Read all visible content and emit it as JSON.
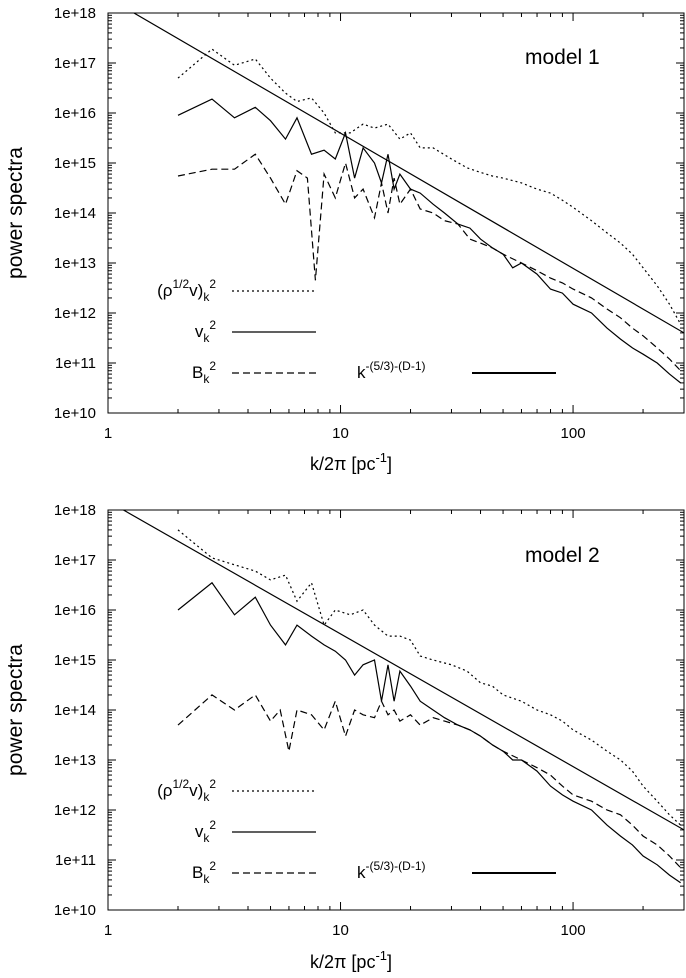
{
  "chart_data": [
    {
      "type": "line",
      "title": "model 1",
      "xlabel": "k/2π [pc⁻¹]",
      "xlabel_main": "k/2π [pc",
      "xlabel_sup": "-1",
      "xlabel_end": "]",
      "ylabel": "power spectra",
      "xscale": "log",
      "yscale": "log",
      "xlim": [
        1,
        300
      ],
      "ylim": [
        10000000000.0,
        1e+18
      ],
      "x_ticks": [
        1,
        10,
        100
      ],
      "x_tick_labels": [
        "1",
        "10",
        "100"
      ],
      "y_ticks": [
        10000000000.0,
        100000000000.0,
        1000000000000.0,
        10000000000000.0,
        100000000000000.0,
        1000000000000000.0,
        1e+16,
        1e+17,
        1e+18
      ],
      "y_tick_labels": [
        "1e+10",
        "1e+11",
        "1e+12",
        "1e+13",
        "1e+14",
        "1e+15",
        "1e+16",
        "1e+17",
        "1e+18"
      ],
      "legend": [
        {
          "label": "(ρ^1/2 v)_k^2",
          "base": "(ρ",
          "sup1": "1/2",
          "mid": "v)",
          "sub": "k",
          "sup2": "2",
          "dash": "dotted"
        },
        {
          "label": "v_k^2",
          "base": "v",
          "sub": "k",
          "sup2": "2",
          "dash": "solid"
        },
        {
          "label": "B_k^2",
          "base": "B",
          "sub": "k",
          "sup2": "2",
          "dash": "dashed"
        },
        {
          "label": "k^-(5/3)-(D-1)",
          "base": "k",
          "sup1": "-(5/3)-(D-1)",
          "dash": "solid-thick"
        }
      ],
      "series": [
        {
          "name": "(ρ^1/2 v)_k^2",
          "style": "dotted",
          "x": [
            2,
            2.8,
            3.5,
            4.3,
            5,
            5.8,
            6.5,
            7.5,
            8.5,
            9.5,
            11,
            12.5,
            14,
            16,
            18,
            20,
            22,
            25,
            30,
            35,
            40,
            45,
            50,
            60,
            70,
            80,
            90,
            100,
            120,
            140,
            160,
            180,
            200,
            230,
            260,
            290
          ],
          "y": [
            5e+16,
            1.9e+17,
            9e+16,
            1.2e+17,
            5e+16,
            2.5e+16,
            1.7e+16,
            2e+16,
            1e+16,
            4000000000000000.0,
            4000000000000000.0,
            6000000000000000.0,
            5000000000000000.0,
            6000000000000000.0,
            3000000000000000.0,
            4000000000000000.0,
            2000000000000000.0,
            2000000000000000.0,
            1200000000000000.0,
            800000000000000.0,
            650000000000000.0,
            550000000000000.0,
            500000000000000.0,
            400000000000000.0,
            300000000000000.0,
            250000000000000.0,
            180000000000000.0,
            130000000000000.0,
            70000000000000.0,
            40000000000000.0,
            25000000000000.0,
            15000000000000.0,
            8000000000000.0,
            3500000000000.0,
            1500000000000.0,
            600000000000.0
          ]
        },
        {
          "name": "v_k^2",
          "style": "solid",
          "x": [
            2,
            2.8,
            3.5,
            4.3,
            5,
            5.8,
            6.5,
            7.5,
            8.5,
            9.5,
            10.5,
            11.5,
            12.5,
            14,
            15,
            16,
            17,
            18,
            20,
            22,
            25,
            28,
            32,
            36,
            40,
            45,
            50,
            55,
            60,
            70,
            80,
            90,
            100,
            120,
            140,
            160,
            180,
            200,
            230,
            260,
            290
          ],
          "y": [
            9000000000000000.0,
            1.9e+16,
            8000000000000000.0,
            1.3e+16,
            7000000000000000.0,
            3000000000000000.0,
            8000000000000000.0,
            1500000000000000.0,
            1800000000000000.0,
            1200000000000000.0,
            4000000000000000.0,
            500000000000000.0,
            2000000000000000.0,
            1000000000000000.0,
            400000000000000.0,
            1500000000000000.0,
            300000000000000.0,
            600000000000000.0,
            300000000000000.0,
            250000000000000.0,
            150000000000000.0,
            100000000000000.0,
            60000000000000.0,
            50000000000000.0,
            30000000000000.0,
            20000000000000.0,
            15000000000000.0,
            8000000000000.0,
            10000000000000.0,
            6000000000000.0,
            3000000000000.0,
            2500000000000.0,
            1500000000000.0,
            1000000000000.0,
            500000000000.0,
            300000000000.0,
            200000000000.0,
            150000000000.0,
            100000000000.0,
            60000000000.0,
            40000000000.0
          ]
        },
        {
          "name": "B_k^2",
          "style": "dashed",
          "x": [
            2,
            2.8,
            3.5,
            4.3,
            5,
            5.8,
            6.5,
            7.2,
            7.8,
            8.5,
            9.5,
            10.5,
            11.5,
            12.5,
            14,
            15,
            16,
            17,
            18,
            20,
            22,
            25,
            28,
            32,
            36,
            40,
            45,
            50,
            60,
            70,
            80,
            90,
            100,
            120,
            140,
            160,
            180,
            200,
            230,
            260,
            290
          ],
          "y": [
            550000000000000.0,
            750000000000000.0,
            750000000000000.0,
            1500000000000000.0,
            500000000000000.0,
            150000000000000.0,
            700000000000000.0,
            500000000000000.0,
            4500000000000.0,
            600000000000000.0,
            200000000000000.0,
            1000000000000000.0,
            200000000000000.0,
            300000000000000.0,
            80000000000000.0,
            400000000000000.0,
            100000000000000.0,
            500000000000000.0,
            150000000000000.0,
            300000000000000.0,
            120000000000000.0,
            100000000000000.0,
            70000000000000.0,
            60000000000000.0,
            30000000000000.0,
            25000000000000.0,
            20000000000000.0,
            15000000000000.0,
            10000000000000.0,
            7000000000000.0,
            5000000000000.0,
            4000000000000.0,
            3000000000000.0,
            2000000000000.0,
            1200000000000.0,
            800000000000.0,
            500000000000.0,
            350000000000.0,
            200000000000.0,
            120000000000.0,
            70000000000.0
          ]
        },
        {
          "name": "k^-(5/3)-(D-1)",
          "style": "solid",
          "x": [
            1,
            300
          ],
          "y": [
            2e+18,
            400000000000.0
          ]
        }
      ]
    },
    {
      "type": "line",
      "title": "model 2",
      "xlabel": "k/2π [pc⁻¹]",
      "xlabel_main": "k/2π [pc",
      "xlabel_sup": "-1",
      "xlabel_end": "]",
      "ylabel": "power spectra",
      "xscale": "log",
      "yscale": "log",
      "xlim": [
        1,
        300
      ],
      "ylim": [
        10000000000.0,
        1e+18
      ],
      "x_ticks": [
        1,
        10,
        100
      ],
      "x_tick_labels": [
        "1",
        "10",
        "100"
      ],
      "y_ticks": [
        10000000000.0,
        100000000000.0,
        1000000000000.0,
        10000000000000.0,
        100000000000000.0,
        1000000000000000.0,
        1e+16,
        1e+17,
        1e+18
      ],
      "y_tick_labels": [
        "1e+10",
        "1e+11",
        "1e+12",
        "1e+13",
        "1e+14",
        "1e+15",
        "1e+16",
        "1e+17",
        "1e+18"
      ],
      "legend": [
        {
          "label": "(ρ^1/2 v)_k^2",
          "base": "(ρ",
          "sup1": "1/2",
          "mid": "v)",
          "sub": "k",
          "sup2": "2",
          "dash": "dotted"
        },
        {
          "label": "v_k^2",
          "base": "v",
          "sub": "k",
          "sup2": "2",
          "dash": "solid"
        },
        {
          "label": "B_k^2",
          "base": "B",
          "sub": "k",
          "sup2": "2",
          "dash": "dashed"
        },
        {
          "label": "k^-(5/3)-(D-1)",
          "base": "k",
          "sup1": "-(5/3)-(D-1)",
          "dash": "solid-thick"
        }
      ],
      "series": [
        {
          "name": "(ρ^1/2 v)_k^2",
          "style": "dotted",
          "x": [
            2,
            2.8,
            3.5,
            4.3,
            5,
            5.8,
            6.5,
            7.5,
            8.5,
            9.5,
            11,
            12.5,
            14,
            16,
            18,
            20,
            22,
            25,
            30,
            35,
            40,
            45,
            50,
            60,
            70,
            80,
            90,
            100,
            120,
            140,
            160,
            180,
            200,
            230,
            260,
            290
          ],
          "y": [
            4e+17,
            1.1e+17,
            8e+16,
            6e+16,
            4e+16,
            5e+16,
            1.5e+16,
            3.5e+16,
            5000000000000000.0,
            1e+16,
            8000000000000000.0,
            1e+16,
            5000000000000000.0,
            3000000000000000.0,
            3000000000000000.0,
            2500000000000000.0,
            1200000000000000.0,
            1000000000000000.0,
            800000000000000.0,
            600000000000000.0,
            350000000000000.0,
            300000000000000.0,
            200000000000000.0,
            150000000000000.0,
            100000000000000.0,
            80000000000000.0,
            60000000000000.0,
            40000000000000.0,
            25000000000000.0,
            15000000000000.0,
            10000000000000.0,
            6000000000000.0,
            3000000000000.0,
            1500000000000.0,
            800000000000.0,
            500000000000.0
          ]
        },
        {
          "name": "v_k^2",
          "style": "solid",
          "x": [
            2,
            2.8,
            3.5,
            4.3,
            5,
            5.8,
            6.5,
            7.5,
            8.5,
            9.5,
            10.5,
            11.5,
            12.5,
            14,
            15,
            16,
            17,
            18,
            20,
            22,
            25,
            28,
            32,
            36,
            40,
            45,
            50,
            55,
            60,
            70,
            80,
            90,
            100,
            120,
            140,
            160,
            180,
            200,
            230,
            260,
            290
          ],
          "y": [
            1e+16,
            3.5e+16,
            8000000000000000.0,
            1.8e+16,
            5000000000000000.0,
            2000000000000000.0,
            5000000000000000.0,
            3000000000000000.0,
            2000000000000000.0,
            1500000000000000.0,
            1000000000000000.0,
            500000000000000.0,
            800000000000000.0,
            1000000000000000.0,
            150000000000000.0,
            800000000000000.0,
            150000000000000.0,
            600000000000000.0,
            300000000000000.0,
            150000000000000.0,
            100000000000000.0,
            70000000000000.0,
            50000000000000.0,
            40000000000000.0,
            30000000000000.0,
            20000000000000.0,
            15000000000000.0,
            10000000000000.0,
            10000000000000.0,
            6000000000000.0,
            3000000000000.0,
            2000000000000.0,
            1500000000000.0,
            1000000000000.0,
            500000000000.0,
            300000000000.0,
            200000000000.0,
            120000000000.0,
            80000000000.0,
            50000000000.0,
            35000000000.0
          ]
        },
        {
          "name": "B_k^2",
          "style": "dashed",
          "x": [
            2,
            2.8,
            3.5,
            4.3,
            5,
            5.5,
            6,
            6.5,
            7.5,
            8.5,
            9.5,
            10.5,
            11.5,
            12.5,
            14,
            15,
            16,
            17,
            18,
            20,
            22,
            25,
            28,
            32,
            36,
            40,
            45,
            50,
            60,
            70,
            80,
            90,
            100,
            120,
            140,
            160,
            180,
            200,
            230,
            260,
            290
          ],
          "y": [
            50000000000000.0,
            200000000000000.0,
            100000000000000.0,
            200000000000000.0,
            60000000000000.0,
            100000000000000.0,
            15000000000000.0,
            100000000000000.0,
            80000000000000.0,
            40000000000000.0,
            150000000000000.0,
            30000000000000.0,
            100000000000000.0,
            80000000000000.0,
            70000000000000.0,
            150000000000000.0,
            80000000000000.0,
            100000000000000.0,
            60000000000000.0,
            80000000000000.0,
            50000000000000.0,
            70000000000000.0,
            60000000000000.0,
            50000000000000.0,
            40000000000000.0,
            30000000000000.0,
            20000000000000.0,
            15000000000000.0,
            10000000000000.0,
            7000000000000.0,
            5000000000000.0,
            3000000000000.0,
            2000000000000.0,
            1500000000000.0,
            1000000000000.0,
            800000000000.0,
            500000000000.0,
            300000000000.0,
            200000000000.0,
            120000000000.0,
            70000000000.0
          ]
        },
        {
          "name": "k^-(5/3)-(D-1)",
          "style": "solid",
          "x": [
            1,
            300
          ],
          "y": [
            1.5e+18,
            400000000000.0
          ]
        }
      ]
    }
  ]
}
